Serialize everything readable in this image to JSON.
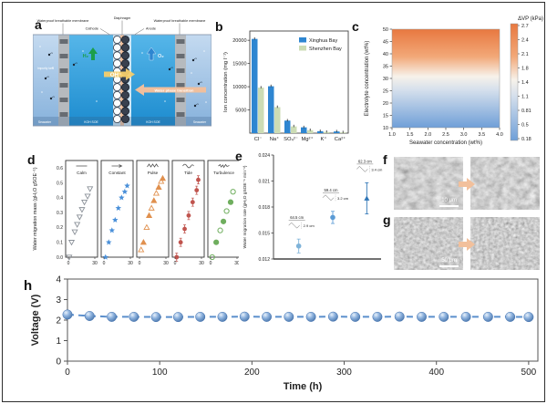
{
  "panel_letters": {
    "a": "a",
    "b": "b",
    "c": "c",
    "d": "d",
    "e": "e",
    "f": "f",
    "g": "g",
    "h": "h"
  },
  "panel_a": {
    "labels": {
      "membrane_left": "Waterproof breathable membrane",
      "diaphragm": "Diaphragm",
      "membrane_right": "Waterproof breathable membrane",
      "cathode": "Cathode",
      "anode": "Anode",
      "h2": "H₂",
      "o2": "O₂",
      "oh": "OH⁻",
      "water_phase_transition": "Water phase transition",
      "impurity_ions": "Impurity ions",
      "seawater_left": "Seawater",
      "koh_left": "KOH SOE",
      "koh_right": "KOH SOE",
      "seawater_right": "Seawater"
    }
  },
  "panel_f": {
    "scale_bar": "10 μm"
  },
  "panel_g": {
    "scale_bar": "50 μm"
  },
  "chart_data": [
    {
      "id": "b",
      "type": "bar",
      "categories": [
        "Cl⁻",
        "Na⁺",
        "SO₄²⁻",
        "Mg²⁺",
        "K⁺",
        "Ca²⁺"
      ],
      "series": [
        {
          "name": "Xinghua Bay",
          "color": "#2e86d1",
          "values": [
            20300,
            10100,
            2700,
            1250,
            420,
            360
          ]
        },
        {
          "name": "Shenzhen Bay",
          "color": "#ccdcb4",
          "values": [
            9800,
            5600,
            1450,
            640,
            260,
            170
          ]
        }
      ],
      "ylabel": "Ion concentration (mg l⁻¹)",
      "ylim": [
        0,
        22000
      ],
      "yticks": [
        5000,
        10000,
        15000,
        20000
      ],
      "legend_position": "top-right"
    },
    {
      "id": "c",
      "type": "heatmap",
      "xlabel": "Seawater concentration (wt%)",
      "ylabel": "Electrolyte concentration (wt%)",
      "xlim": [
        1.0,
        4.0
      ],
      "ylim": [
        10,
        50
      ],
      "xticks": [
        1.0,
        1.5,
        2.0,
        2.5,
        3.0,
        3.5,
        4.0
      ],
      "yticks": [
        10,
        15,
        20,
        25,
        30,
        35,
        40,
        45,
        50
      ],
      "colorbar_title": "ΔVP (kPa)",
      "colorbar_ticks": [
        2.7,
        2.4,
        2.1,
        1.8,
        1.4,
        1.1,
        0.81,
        0.5,
        0.18
      ],
      "gradient_top": "#e87840",
      "gradient_mid": "#f7f2ea",
      "gradient_bottom": "#6f9fd8"
    },
    {
      "id": "d",
      "type": "scatter",
      "ylabel": "Water migration mass (gH₂O gSOE⁻¹)",
      "ylim": [
        0,
        0.65
      ],
      "yticks": [
        0.0,
        0.1,
        0.2,
        0.3,
        0.4,
        0.5,
        0.6
      ],
      "xlim": [
        0,
        33
      ],
      "xticks": [
        0,
        30
      ],
      "panels": [
        {
          "label": "Calm",
          "color": "#8a9098",
          "marker": "triangle-down-open",
          "x": [
            1,
            4,
            8,
            11,
            14,
            17,
            20,
            24,
            27
          ],
          "y": [
            0.0,
            0.1,
            0.17,
            0.22,
            0.27,
            0.32,
            0.37,
            0.41,
            0.46
          ]
        },
        {
          "label": "Constant",
          "color": "#4a90d9",
          "marker": "star",
          "x": [
            2,
            6,
            10,
            14,
            18,
            22,
            26,
            29
          ],
          "y": [
            0.0,
            0.1,
            0.18,
            0.25,
            0.33,
            0.4,
            0.44,
            0.48
          ]
        },
        {
          "label": "Pulse",
          "color": "#e0904e",
          "marker": "triangle-open",
          "x": [
            2,
            5,
            9,
            12,
            15,
            18,
            21,
            24,
            27,
            29
          ],
          "y": [
            0.05,
            0.1,
            0.2,
            0.28,
            0.33,
            0.38,
            0.43,
            0.47,
            0.51,
            0.53
          ]
        },
        {
          "label": "Tide",
          "color": "#c0544e",
          "marker": "circle",
          "x": [
            2,
            7,
            12,
            17,
            22,
            27,
            29
          ],
          "y": [
            0.0,
            0.1,
            0.19,
            0.28,
            0.37,
            0.45,
            0.52
          ]
        },
        {
          "label": "Turbulence",
          "color": "#6fae5e",
          "marker": "circle-half",
          "x": [
            2,
            7,
            12,
            16,
            20,
            25,
            28
          ],
          "y": [
            0.0,
            0.1,
            0.18,
            0.24,
            0.31,
            0.37,
            0.44
          ]
        }
      ]
    },
    {
      "id": "e",
      "type": "scatter",
      "ylabel": "Water migration rate (gH₂O gSOE⁻¹ min⁻¹)",
      "ylim": [
        0.012,
        0.024
      ],
      "yticks": [
        0.012,
        0.015,
        0.018,
        0.021,
        0.024
      ],
      "points": [
        {
          "x": 1,
          "y": 0.0135,
          "err": 0.0008,
          "marker": "circle",
          "color": "#7fb3d9",
          "label_top": "64.5 cm",
          "label_side": "2.9 cm"
        },
        {
          "x": 2,
          "y": 0.0168,
          "err": 0.0007,
          "marker": "circle",
          "color": "#5b9bd5",
          "label_top": "59.4 cm",
          "label_side": "3.2 cm"
        },
        {
          "x": 3,
          "y": 0.019,
          "err": 0.0018,
          "marker": "triangle",
          "color": "#2e75b6",
          "label_top": "62.3 cm",
          "label_side": "3.4 cm"
        }
      ]
    },
    {
      "id": "h",
      "type": "line",
      "xlabel": "Time (h)",
      "ylabel": "Voltage (V)",
      "xlim": [
        0,
        510
      ],
      "ylim": [
        0,
        4
      ],
      "xticks": [
        0,
        100,
        200,
        300,
        400,
        500
      ],
      "yticks": [
        0,
        1,
        2,
        3,
        4
      ],
      "line_style": "dashed",
      "color": "#5b8fcc",
      "x": [
        0,
        24,
        48,
        72,
        96,
        120,
        144,
        168,
        192,
        216,
        240,
        264,
        288,
        312,
        336,
        360,
        384,
        408,
        432,
        456,
        480,
        500
      ],
      "y": [
        2.27,
        2.2,
        2.16,
        2.16,
        2.15,
        2.15,
        2.16,
        2.16,
        2.17,
        2.16,
        2.16,
        2.16,
        2.17,
        2.16,
        2.16,
        2.17,
        2.16,
        2.16,
        2.16,
        2.16,
        2.16,
        2.15
      ]
    }
  ]
}
